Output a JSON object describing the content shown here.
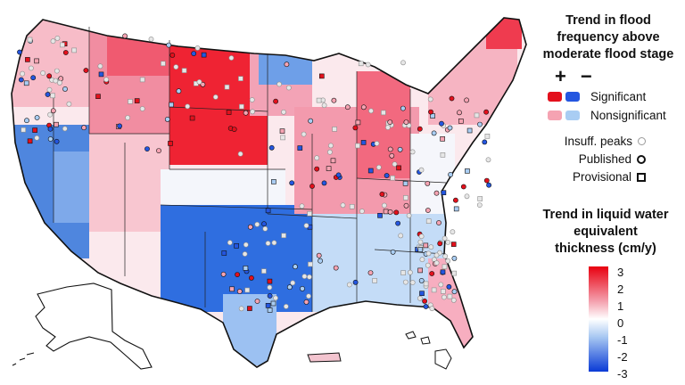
{
  "legend_flood": {
    "title": "Trend in flood\nfrequency above\nmoderate flood stage",
    "plus": "+",
    "minus": "−",
    "significant_label": "Significant",
    "nonsignificant_label": "Nonsignificant",
    "insufficient_label": "Insuff. peaks",
    "published_label": "Published",
    "provisional_label": "Provisional"
  },
  "legend_water": {
    "title": "Trend in liquid water\nequivalent\nthickness (cm/y)",
    "ticks": [
      "3",
      "2",
      "1",
      "0",
      "-1",
      "-2",
      "-3"
    ]
  },
  "colors": {
    "sig_up": "#e3101c",
    "sig_down": "#2456e0",
    "nonsig_up": "#f5a3b2",
    "nonsig_down": "#a9cdf3",
    "scale_max": "#e8000f",
    "scale_mid": "#ffffff",
    "scale_min": "#0a3ad6",
    "insuff_fill": "#e6e6e6"
  }
}
